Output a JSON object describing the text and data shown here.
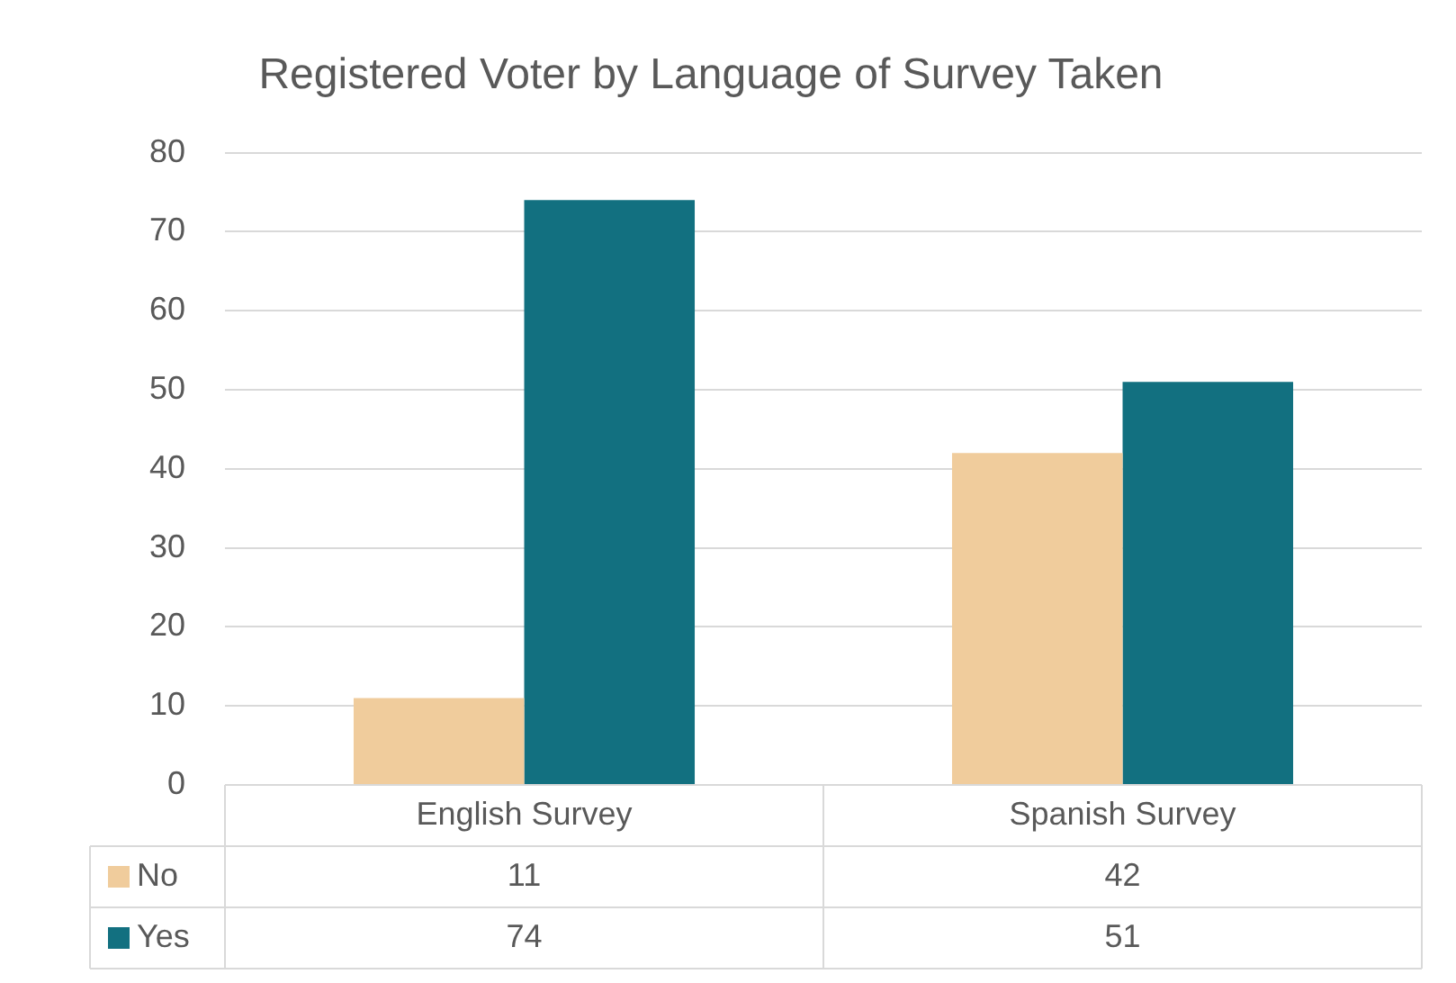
{
  "chart_data": {
    "type": "bar",
    "title": "Registered Voter by Language of Survey Taken",
    "categories": [
      "English Survey",
      "Spanish Survey"
    ],
    "series": [
      {
        "name": "No",
        "color": "#f0cc9c",
        "values": [
          11,
          42
        ]
      },
      {
        "name": "Yes",
        "color": "#127080",
        "values": [
          74,
          51
        ]
      }
    ],
    "ylim": [
      0,
      80
    ],
    "yticks": [
      0,
      10,
      20,
      30,
      40,
      50,
      60,
      70,
      80
    ],
    "grid": "y",
    "data_labels": true,
    "legend": "bottom"
  }
}
